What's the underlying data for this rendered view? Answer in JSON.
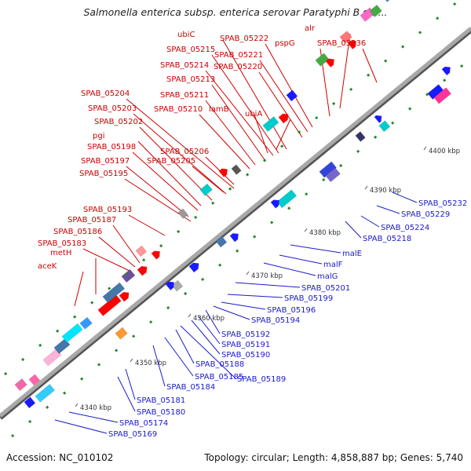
{
  "header": {
    "title": "Salmonella enterica subsp. enterica serovar Paratyphi B str...."
  },
  "footer": {
    "accession": "Accession: NC_010102",
    "summary": "Topology: circular; Length: 4,858,887 bp; Genes: 5,740"
  },
  "colors": {
    "backbone": "#8c8c8c",
    "forward_label": "#cc0000",
    "reverse_label": "#1a1acc",
    "forward_arrow": "#ff0000",
    "reverse_arrow": "#1a1aff",
    "tick": "#2a8a2a"
  },
  "axis": {
    "ticks": [
      "4340 kbp",
      "4350 kbp",
      "4360 kbp",
      "4370 kbp",
      "4380 kbp",
      "4390 kbp",
      "4400 kbp"
    ]
  },
  "forward_genes": [
    "aceK",
    "metH",
    "SPAB_05183",
    "SPAB_05186",
    "SPAB_05187",
    "SPAB_05193",
    "SPAB_05195",
    "SPAB_05197",
    "SPAB_05198",
    "pgi",
    "SPAB_05202",
    "SPAB_05203",
    "SPAB_05204",
    "SPAB_05205",
    "SPAB_05206",
    "SPAB_05210",
    "SPAB_05211",
    "lamB",
    "ubiA",
    "SPAB_05213",
    "SPAB_05214",
    "SPAB_05215",
    "ubiC",
    "SPAB_05220",
    "SPAB_05221",
    "SPAB_05222",
    "pspG",
    "alr",
    "SPAB_05236"
  ],
  "reverse_genes": [
    "SPAB_05169",
    "SPAB_05174",
    "SPAB_05180",
    "SPAB_05181",
    "SPAB_05184",
    "SPAB_05185",
    "SPAB_05188",
    "SPAB_05189",
    "SPAB_05190",
    "SPAB_05191",
    "SPAB_05192",
    "SPAB_05194",
    "SPAB_05196",
    "SPAB_05199",
    "SPAB_05201",
    "malG",
    "malF",
    "malE",
    "SPAB_05218",
    "SPAB_05224",
    "SPAB_05229",
    "SPAB_05232"
  ]
}
